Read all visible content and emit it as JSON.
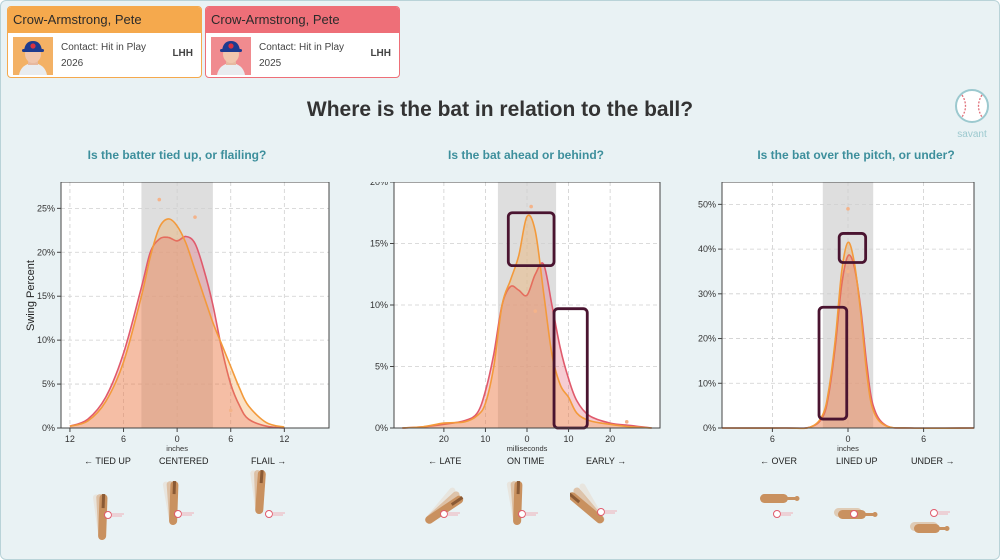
{
  "cards": [
    {
      "name": "Crow-Armstrong, Pete",
      "line1": "Contact: Hit in Play",
      "year": "2026",
      "hand": "LHH",
      "color": "#f5a94d"
    },
    {
      "name": "Crow-Armstrong, Pete",
      "line1": "Contact: Hit in Play",
      "year": "2025",
      "hand": "LHH",
      "color": "#ee6f78"
    }
  ],
  "title": "Where is the bat in relation to the ball?",
  "logo_text": "savant",
  "ylabel": "Swing Percent",
  "colors": {
    "series_2026": "#f39a3b",
    "series_2025": "#e05a6c",
    "band": "#dedede",
    "highlight_box": "#4a1430",
    "accent": "#3d8f9c"
  },
  "chart_data": [
    {
      "type": "area",
      "title": "Is the batter tied up, or flailing?",
      "xlabel": "inches",
      "xlim": [
        -13,
        17
      ],
      "ylim": [
        0,
        0.28
      ],
      "xticks": [
        {
          "v": -12,
          "l": "12"
        },
        {
          "v": -6,
          "l": "6"
        },
        {
          "v": 0,
          "l": "0"
        },
        {
          "v": 6,
          "l": "6"
        },
        {
          "v": 12,
          "l": "12"
        }
      ],
      "yticks": [
        {
          "v": 0,
          "l": "0%"
        },
        {
          "v": 0.05,
          "l": "5%"
        },
        {
          "v": 0.1,
          "l": "10%"
        },
        {
          "v": 0.15,
          "l": "15%"
        },
        {
          "v": 0.2,
          "l": "20%"
        },
        {
          "v": 0.25,
          "l": "25%"
        }
      ],
      "band": [
        -4,
        4
      ],
      "categories": [
        "← TIED UP",
        "CENTERED",
        "FLAIL →"
      ],
      "series": [
        {
          "year": "2026",
          "x": [
            -12,
            -10,
            -8,
            -6,
            -4,
            -3,
            -2,
            -1,
            0,
            1,
            2,
            3,
            4,
            5,
            6,
            7,
            8,
            10,
            12
          ],
          "y": [
            0.002,
            0.008,
            0.03,
            0.075,
            0.15,
            0.195,
            0.228,
            0.238,
            0.23,
            0.21,
            0.18,
            0.15,
            0.12,
            0.095,
            0.07,
            0.045,
            0.025,
            0.006,
            0.001
          ]
        },
        {
          "year": "2025",
          "x": [
            -12,
            -10,
            -8,
            -6,
            -4,
            -3,
            -2,
            -1,
            0,
            1,
            2,
            3,
            4,
            5,
            6,
            7,
            8,
            10,
            12
          ],
          "y": [
            0.002,
            0.01,
            0.035,
            0.085,
            0.16,
            0.2,
            0.215,
            0.217,
            0.213,
            0.218,
            0.21,
            0.18,
            0.14,
            0.09,
            0.05,
            0.025,
            0.01,
            0.002,
            0.0
          ]
        }
      ],
      "points": [
        {
          "x": -2,
          "y": 0.26
        },
        {
          "x": 2,
          "y": 0.24
        },
        {
          "x": 6,
          "y": 0.02
        }
      ],
      "boxes": []
    },
    {
      "type": "area",
      "title": "Is the bat ahead or behind?",
      "xlabel": "milliseconds",
      "xlim": [
        -32,
        32
      ],
      "ylim": [
        0,
        0.2
      ],
      "xticks": [
        {
          "v": -20,
          "l": "20"
        },
        {
          "v": -10,
          "l": "10"
        },
        {
          "v": 0,
          "l": "0"
        },
        {
          "v": 10,
          "l": "10"
        },
        {
          "v": 20,
          "l": "20"
        }
      ],
      "yticks": [
        {
          "v": 0,
          "l": "0%"
        },
        {
          "v": 0.05,
          "l": "5%"
        },
        {
          "v": 0.1,
          "l": "10%"
        },
        {
          "v": 0.15,
          "l": "15%"
        },
        {
          "v": 0.2,
          "l": "20%"
        }
      ],
      "band": [
        -7,
        7
      ],
      "categories": [
        "← LATE",
        "ON TIME",
        "EARLY →"
      ],
      "series": [
        {
          "year": "2026",
          "x": [
            -30,
            -25,
            -20,
            -15,
            -12,
            -10,
            -8,
            -6,
            -4,
            -2,
            0,
            2,
            4,
            6,
            8,
            10,
            12,
            15,
            20,
            25,
            30
          ],
          "y": [
            0.0,
            0.001,
            0.004,
            0.005,
            0.01,
            0.02,
            0.05,
            0.1,
            0.12,
            0.14,
            0.172,
            0.16,
            0.11,
            0.06,
            0.035,
            0.025,
            0.012,
            0.006,
            0.003,
            0.001,
            0.0
          ]
        },
        {
          "year": "2025",
          "x": [
            -30,
            -25,
            -20,
            -15,
            -12,
            -10,
            -8,
            -6,
            -4,
            -2,
            0,
            2,
            4,
            6,
            8,
            10,
            12,
            15,
            20,
            25,
            30
          ],
          "y": [
            0.0,
            0.001,
            0.003,
            0.006,
            0.012,
            0.03,
            0.06,
            0.1,
            0.115,
            0.112,
            0.108,
            0.125,
            0.133,
            0.1,
            0.065,
            0.04,
            0.022,
            0.01,
            0.004,
            0.002,
            0.0
          ]
        }
      ],
      "points": [
        {
          "x": 1,
          "y": 0.18
        },
        {
          "x": 2,
          "y": 0.095
        },
        {
          "x": 24,
          "y": 0.005
        }
      ],
      "boxes": [
        {
          "x0": -4.5,
          "x1": 6.5,
          "y0": 0.132,
          "y1": 0.175
        },
        {
          "x0": 6.5,
          "x1": 14.5,
          "y0": 0.0,
          "y1": 0.097
        }
      ]
    },
    {
      "type": "area",
      "title": "Is the bat over the pitch, or under?",
      "xlabel": "inches",
      "xlim": [
        -10,
        10
      ],
      "ylim": [
        0,
        0.55
      ],
      "xticks": [
        {
          "v": -6,
          "l": "6"
        },
        {
          "v": 0,
          "l": "0"
        },
        {
          "v": 6,
          "l": "6"
        }
      ],
      "yticks": [
        {
          "v": 0,
          "l": "0%"
        },
        {
          "v": 0.1,
          "l": "10%"
        },
        {
          "v": 0.2,
          "l": "20%"
        },
        {
          "v": 0.3,
          "l": "30%"
        },
        {
          "v": 0.4,
          "l": "40%"
        },
        {
          "v": 0.5,
          "l": "50%"
        }
      ],
      "band": [
        -2,
        2
      ],
      "categories": [
        "← OVER",
        "LINED UP",
        "UNDER →"
      ],
      "series": [
        {
          "year": "2026",
          "x": [
            -10,
            -5,
            -3,
            -2,
            -1.5,
            -1,
            -0.5,
            0,
            0.5,
            1,
            1.5,
            2,
            3,
            5,
            10
          ],
          "y": [
            0.0,
            0.0,
            0.002,
            0.03,
            0.09,
            0.2,
            0.35,
            0.415,
            0.37,
            0.26,
            0.12,
            0.04,
            0.005,
            0.0,
            0.0
          ]
        },
        {
          "year": "2025",
          "x": [
            -10,
            -5,
            -3,
            -2,
            -1.5,
            -1,
            -0.5,
            0,
            0.5,
            1,
            1.5,
            2,
            3,
            5,
            10
          ],
          "y": [
            0.0,
            0.0,
            0.002,
            0.025,
            0.08,
            0.185,
            0.32,
            0.385,
            0.36,
            0.27,
            0.14,
            0.05,
            0.006,
            0.0,
            0.0
          ]
        }
      ],
      "points": [
        {
          "x": 0,
          "y": 0.49
        },
        {
          "x": 0,
          "y": 0.35
        }
      ],
      "boxes": [
        {
          "x0": -2.3,
          "x1": -0.1,
          "y0": 0.02,
          "y1": 0.27
        },
        {
          "x0": -0.7,
          "x1": 1.4,
          "y0": 0.37,
          "y1": 0.435
        }
      ]
    }
  ]
}
